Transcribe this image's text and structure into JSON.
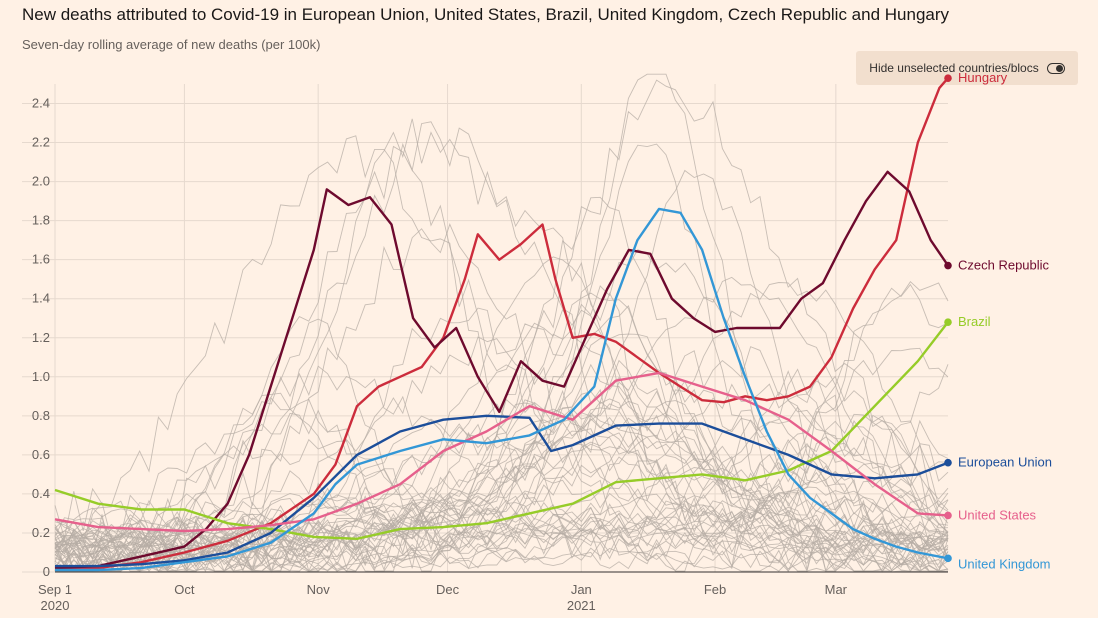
{
  "title": "New deaths attributed to Covid-19 in European Union, United States, Brazil, United Kingdom, Czech Republic and Hungary",
  "subtitle": "Seven-day rolling average of new deaths (per 100k)",
  "toggle": {
    "label": "Hide unselected countries/blocs",
    "state": "off"
  },
  "chart_data": {
    "type": "line",
    "x_start": "2020-09-01",
    "x_end": "2021-03-27",
    "xlim": [
      "2020-09-01",
      "2021-03-27"
    ],
    "ylim": [
      0,
      2.5
    ],
    "yticks": [
      "0",
      "0.2",
      "0.4",
      "0.6",
      "0.8",
      "1.0",
      "1.2",
      "1.4",
      "1.6",
      "1.8",
      "2.0",
      "2.2",
      "2.4"
    ],
    "ytick_values": [
      0,
      0.2,
      0.4,
      0.6,
      0.8,
      1.0,
      1.2,
      1.4,
      1.6,
      1.8,
      2.0,
      2.2,
      2.4
    ],
    "xticks": [
      {
        "date": "2020-09-01",
        "label": "Sep 1",
        "label2": "2020"
      },
      {
        "date": "2020-10-01",
        "label": "Oct",
        "label2": ""
      },
      {
        "date": "2020-11-01",
        "label": "Nov",
        "label2": ""
      },
      {
        "date": "2020-12-01",
        "label": "Dec",
        "label2": ""
      },
      {
        "date": "2021-01-01",
        "label": "Jan",
        "label2": "2021"
      },
      {
        "date": "2021-02-01",
        "label": "Feb",
        "label2": ""
      },
      {
        "date": "2021-03-01",
        "label": "Mar",
        "label2": ""
      }
    ],
    "grid": true,
    "colors": {
      "background": "#fff1e5",
      "grid": "#e6d9ce",
      "background_lines": "#b6aca4"
    },
    "series": [
      {
        "name": "Hungary",
        "color": "#cc2c3c",
        "label_dy": 0,
        "x": [
          "2020-09-01",
          "2020-09-11",
          "2020-09-21",
          "2020-10-01",
          "2020-10-11",
          "2020-10-21",
          "2020-10-31",
          "2020-11-05",
          "2020-11-10",
          "2020-11-15",
          "2020-11-20",
          "2020-11-25",
          "2020-11-30",
          "2020-12-05",
          "2020-12-08",
          "2020-12-13",
          "2020-12-18",
          "2020-12-23",
          "2020-12-26",
          "2020-12-30",
          "2021-01-04",
          "2021-01-09",
          "2021-01-14",
          "2021-01-19",
          "2021-01-24",
          "2021-01-29",
          "2021-02-03",
          "2021-02-08",
          "2021-02-13",
          "2021-02-18",
          "2021-02-23",
          "2021-02-28",
          "2021-03-05",
          "2021-03-10",
          "2021-03-15",
          "2021-03-20",
          "2021-03-25",
          "2021-03-27"
        ],
        "y": [
          0.02,
          0.02,
          0.05,
          0.1,
          0.16,
          0.25,
          0.4,
          0.55,
          0.85,
          0.95,
          1.0,
          1.05,
          1.2,
          1.5,
          1.73,
          1.6,
          1.68,
          1.78,
          1.5,
          1.2,
          1.22,
          1.18,
          1.1,
          1.02,
          0.95,
          0.88,
          0.87,
          0.9,
          0.88,
          0.9,
          0.95,
          1.1,
          1.35,
          1.55,
          1.7,
          2.2,
          2.48,
          2.53
        ]
      },
      {
        "name": "Czech Republic",
        "color": "#6e0a2e",
        "label_dy": 0,
        "x": [
          "2020-09-01",
          "2020-09-11",
          "2020-09-21",
          "2020-10-01",
          "2020-10-06",
          "2020-10-11",
          "2020-10-16",
          "2020-10-21",
          "2020-10-26",
          "2020-10-31",
          "2020-11-03",
          "2020-11-08",
          "2020-11-13",
          "2020-11-18",
          "2020-11-23",
          "2020-11-28",
          "2020-12-03",
          "2020-12-08",
          "2020-12-13",
          "2020-12-18",
          "2020-12-23",
          "2020-12-28",
          "2021-01-02",
          "2021-01-07",
          "2021-01-12",
          "2021-01-17",
          "2021-01-22",
          "2021-01-27",
          "2021-02-01",
          "2021-02-06",
          "2021-02-11",
          "2021-02-16",
          "2021-02-21",
          "2021-02-26",
          "2021-03-03",
          "2021-03-08",
          "2021-03-13",
          "2021-03-18",
          "2021-03-23",
          "2021-03-27"
        ],
        "y": [
          0.02,
          0.03,
          0.08,
          0.13,
          0.22,
          0.35,
          0.6,
          0.95,
          1.3,
          1.65,
          1.96,
          1.88,
          1.92,
          1.78,
          1.3,
          1.15,
          1.25,
          1.0,
          0.82,
          1.08,
          0.98,
          0.95,
          1.2,
          1.45,
          1.65,
          1.63,
          1.4,
          1.3,
          1.23,
          1.25,
          1.25,
          1.25,
          1.4,
          1.48,
          1.7,
          1.9,
          2.05,
          1.95,
          1.7,
          1.57
        ]
      },
      {
        "name": "Brazil",
        "color": "#96cc28",
        "label_dy": 0,
        "x": [
          "2020-09-01",
          "2020-09-11",
          "2020-09-21",
          "2020-10-01",
          "2020-10-11",
          "2020-10-21",
          "2020-10-31",
          "2020-11-10",
          "2020-11-20",
          "2020-11-30",
          "2020-12-10",
          "2020-12-20",
          "2020-12-30",
          "2021-01-09",
          "2021-01-19",
          "2021-01-29",
          "2021-02-08",
          "2021-02-18",
          "2021-02-28",
          "2021-03-10",
          "2021-03-20",
          "2021-03-27"
        ],
        "y": [
          0.42,
          0.35,
          0.32,
          0.32,
          0.25,
          0.22,
          0.18,
          0.17,
          0.22,
          0.23,
          0.25,
          0.3,
          0.35,
          0.46,
          0.48,
          0.5,
          0.47,
          0.52,
          0.62,
          0.85,
          1.08,
          1.28
        ]
      },
      {
        "name": "European Union",
        "color": "#1c4e9a",
        "label_dy": 0,
        "x": [
          "2020-09-01",
          "2020-09-11",
          "2020-09-21",
          "2020-10-01",
          "2020-10-11",
          "2020-10-21",
          "2020-10-31",
          "2020-11-10",
          "2020-11-20",
          "2020-11-30",
          "2020-12-10",
          "2020-12-20",
          "2020-12-25",
          "2020-12-30",
          "2021-01-09",
          "2021-01-19",
          "2021-01-29",
          "2021-02-08",
          "2021-02-18",
          "2021-02-28",
          "2021-03-10",
          "2021-03-20",
          "2021-03-27"
        ],
        "y": [
          0.03,
          0.03,
          0.04,
          0.06,
          0.1,
          0.2,
          0.38,
          0.6,
          0.72,
          0.78,
          0.8,
          0.79,
          0.62,
          0.65,
          0.75,
          0.76,
          0.76,
          0.68,
          0.6,
          0.5,
          0.48,
          0.5,
          0.56
        ]
      },
      {
        "name": "United States",
        "color": "#e6608c",
        "label_dy": 0,
        "x": [
          "2020-09-01",
          "2020-09-11",
          "2020-09-21",
          "2020-10-01",
          "2020-10-11",
          "2020-10-21",
          "2020-10-31",
          "2020-11-10",
          "2020-11-20",
          "2020-11-30",
          "2020-12-10",
          "2020-12-20",
          "2020-12-30",
          "2021-01-09",
          "2021-01-19",
          "2021-01-29",
          "2021-02-08",
          "2021-02-18",
          "2021-02-28",
          "2021-03-10",
          "2021-03-20",
          "2021-03-27"
        ],
        "y": [
          0.27,
          0.23,
          0.22,
          0.21,
          0.22,
          0.24,
          0.27,
          0.35,
          0.45,
          0.62,
          0.72,
          0.85,
          0.78,
          0.98,
          1.02,
          0.95,
          0.88,
          0.78,
          0.62,
          0.45,
          0.3,
          0.29
        ]
      },
      {
        "name": "United Kingdom",
        "color": "#3397d6",
        "label_dy": 6,
        "x": [
          "2020-09-01",
          "2020-09-11",
          "2020-09-21",
          "2020-10-01",
          "2020-10-11",
          "2020-10-21",
          "2020-10-31",
          "2020-11-05",
          "2020-11-10",
          "2020-11-20",
          "2020-11-30",
          "2020-12-10",
          "2020-12-20",
          "2020-12-28",
          "2021-01-04",
          "2021-01-09",
          "2021-01-14",
          "2021-01-19",
          "2021-01-24",
          "2021-01-29",
          "2021-02-03",
          "2021-02-08",
          "2021-02-13",
          "2021-02-18",
          "2021-02-23",
          "2021-02-28",
          "2021-03-05",
          "2021-03-10",
          "2021-03-15",
          "2021-03-20",
          "2021-03-27"
        ],
        "y": [
          0.01,
          0.01,
          0.02,
          0.05,
          0.08,
          0.15,
          0.3,
          0.45,
          0.55,
          0.62,
          0.68,
          0.66,
          0.7,
          0.78,
          0.95,
          1.4,
          1.7,
          1.86,
          1.84,
          1.65,
          1.3,
          1.0,
          0.72,
          0.5,
          0.38,
          0.3,
          0.22,
          0.17,
          0.13,
          0.1,
          0.07
        ]
      }
    ]
  }
}
